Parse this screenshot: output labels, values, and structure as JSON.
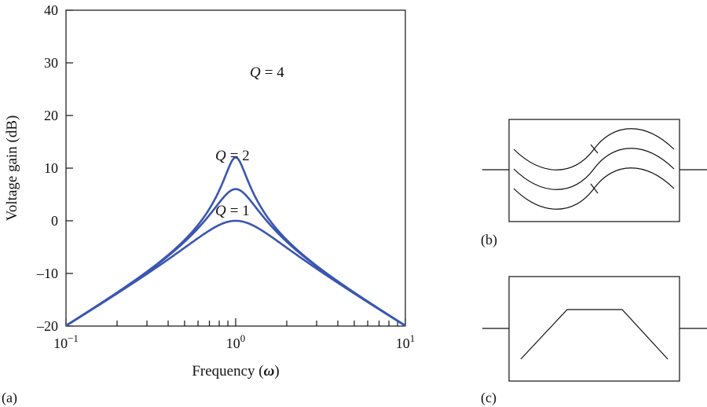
{
  "chart_data": {
    "type": "line",
    "title": "",
    "xlabel": "Frequency",
    "xlabel_symbol": "ω",
    "ylabel": "Voltage gain (dB)",
    "xscale": "log",
    "xlim": [
      0.1,
      10
    ],
    "ylim": [
      -20,
      40
    ],
    "yticks": [
      "40",
      "30",
      "20",
      "10",
      "0",
      "–10",
      "–20"
    ],
    "xtick_labels": [
      {
        "base": "10",
        "exp": "−1"
      },
      {
        "base": "10",
        "exp": "0"
      },
      {
        "base": "10",
        "exp": "1"
      }
    ],
    "grid": false,
    "line_color": "#3a56b0",
    "series": [
      {
        "label_q": "Q",
        "label_value": "= 4",
        "Q": 4
      },
      {
        "label_q": "Q",
        "label_value": "= 2",
        "Q": 2
      },
      {
        "label_q": "Q",
        "label_value": "= 1",
        "Q": 1
      }
    ]
  },
  "panels": {
    "a": "(a)",
    "b": "(b)",
    "c": "(c)"
  }
}
